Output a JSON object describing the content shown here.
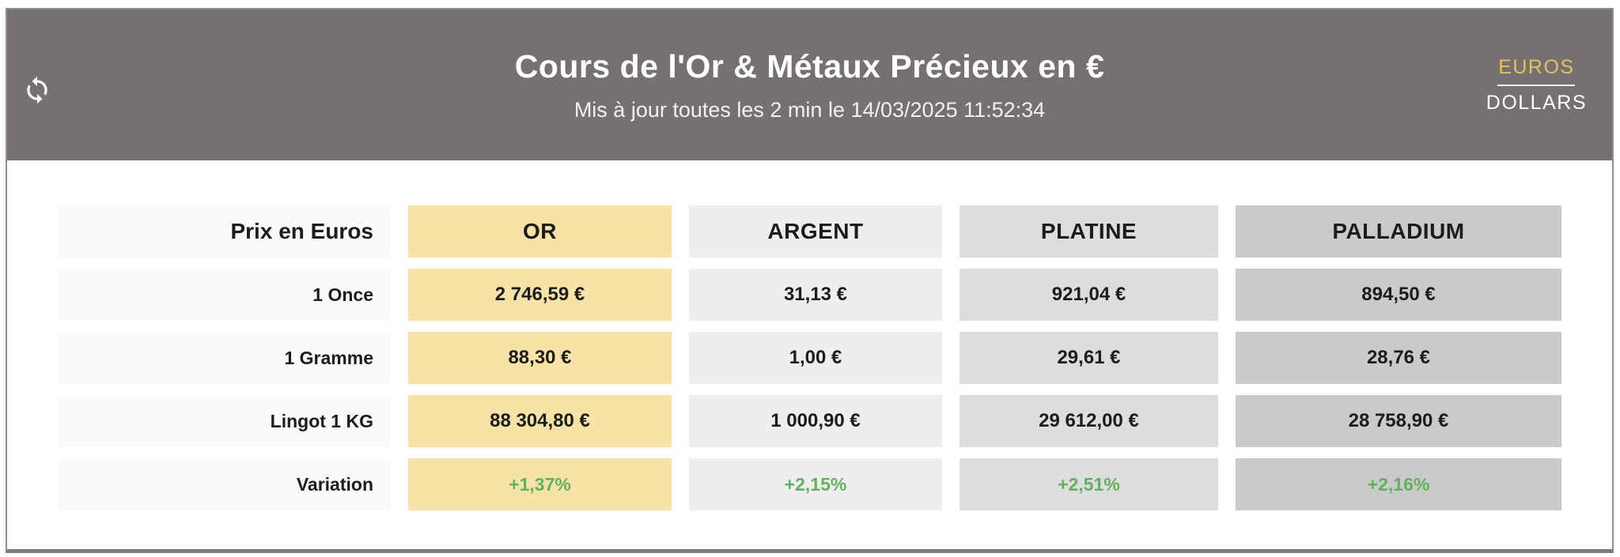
{
  "header": {
    "title": "Cours de l'Or & Métaux Précieux en €",
    "subtitle": "Mis à jour toutes les 2 min le 14/03/2025 11:52:34",
    "refresh_icon": "refresh-sync-arrows",
    "currency_toggle": {
      "selected": "EUROS",
      "options": [
        "EUROS",
        "DOLLARS"
      ]
    }
  },
  "colors": {
    "header_bg": "#767171",
    "accent_gold_text": "#e5c15c",
    "gold_cell": "#f7e3a5",
    "silver_cell": "#efeeee",
    "platinum_cell": "#dedddd",
    "palladium_cell": "#cbcaca",
    "label_cell": "#fafafa",
    "positive_green": "#62b15e",
    "text_dark": "#1c1c1c",
    "frame_border": "#8f8f8f"
  },
  "table": {
    "corner_label": "Prix en Euros",
    "columns": [
      {
        "label": "OR",
        "bg": "#f7e3a5"
      },
      {
        "label": "ARGENT",
        "bg": "#efeeee"
      },
      {
        "label": "PLATINE",
        "bg": "#dedddd"
      },
      {
        "label": "PALLADIUM",
        "bg": "#cbcaca"
      }
    ],
    "rows": [
      {
        "label": "1 Once",
        "type": "price",
        "values": [
          "2 746,59 €",
          "31,13 €",
          "921,04 €",
          "894,50 €"
        ]
      },
      {
        "label": "1 Gramme",
        "type": "price",
        "values": [
          "88,30 €",
          "1,00 €",
          "29,61 €",
          "28,76 €"
        ]
      },
      {
        "label": "Lingot 1 KG",
        "type": "price",
        "values": [
          "88 304,80 €",
          "1 000,90 €",
          "29 612,00 €",
          "28 758,90 €"
        ]
      },
      {
        "label": "Variation",
        "type": "variation",
        "values": [
          "+1,37%",
          "+2,15%",
          "+2,51%",
          "+2,16%"
        ]
      }
    ]
  }
}
